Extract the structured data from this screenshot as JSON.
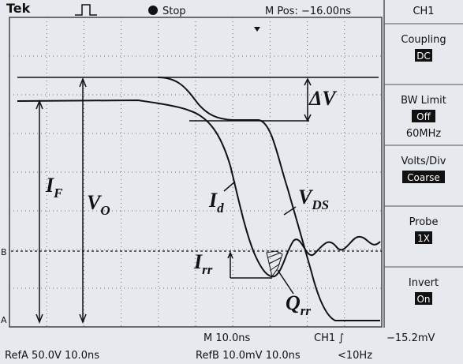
{
  "header": {
    "brand": "Tek",
    "status": "Stop",
    "position": "M Pos: −16.00ns"
  },
  "menu": {
    "title": "CH1",
    "items": [
      {
        "label": "Coupling",
        "value": "DC"
      },
      {
        "label": "BW Limit",
        "value": "Off",
        "extra": "60MHz"
      },
      {
        "label": "Volts/Div",
        "value": "Coarse"
      },
      {
        "label": "Probe",
        "value": "1X"
      },
      {
        "label": "Invert",
        "value": "On"
      }
    ]
  },
  "markers": {
    "b": "B",
    "a": "A"
  },
  "annotations": {
    "delta_v": "ΔV",
    "i_f": {
      "base": "I",
      "sub": "F"
    },
    "v_o": {
      "base": "V",
      "sub": "O"
    },
    "i_d": {
      "base": "I",
      "sub": "d"
    },
    "v_ds": {
      "base": "V",
      "sub": "DS"
    },
    "i_rr": {
      "base": "I",
      "sub": "rr"
    },
    "q_rr": {
      "base": "Q",
      "sub": "rr"
    }
  },
  "footer": {
    "timebase": "M 10.0ns",
    "trigger": "CH1 ∫",
    "level": "−15.2mV",
    "ref_a": "RefA 50.0V 10.0ns",
    "ref_b": "RefB 10.0mV 10.0ns",
    "freq": "<10Hz"
  }
}
